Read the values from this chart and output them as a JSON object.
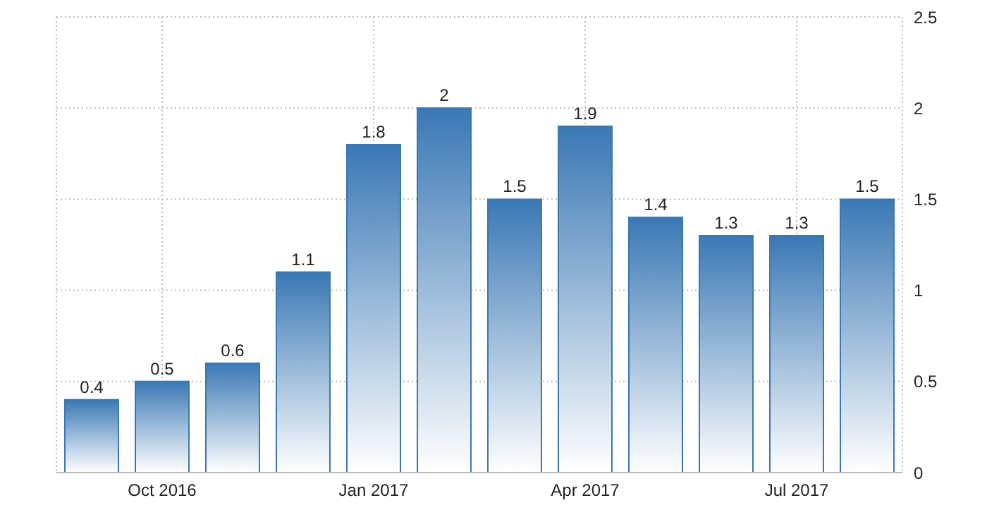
{
  "chart_data": {
    "type": "bar",
    "categories": [
      null,
      "Oct 2016",
      null,
      null,
      "Jan 2017",
      null,
      null,
      "Apr 2017",
      null,
      null,
      "Jul 2017",
      null
    ],
    "values": [
      0.4,
      0.5,
      0.6,
      1.1,
      1.8,
      2,
      1.5,
      1.9,
      1.4,
      1.3,
      1.3,
      1.5
    ],
    "color": "#3a78b5",
    "ylim": [
      0,
      2.5
    ],
    "yticks": [
      0,
      0.5,
      1,
      1.5,
      2,
      2.5
    ],
    "grid": true,
    "data_labels": true
  }
}
